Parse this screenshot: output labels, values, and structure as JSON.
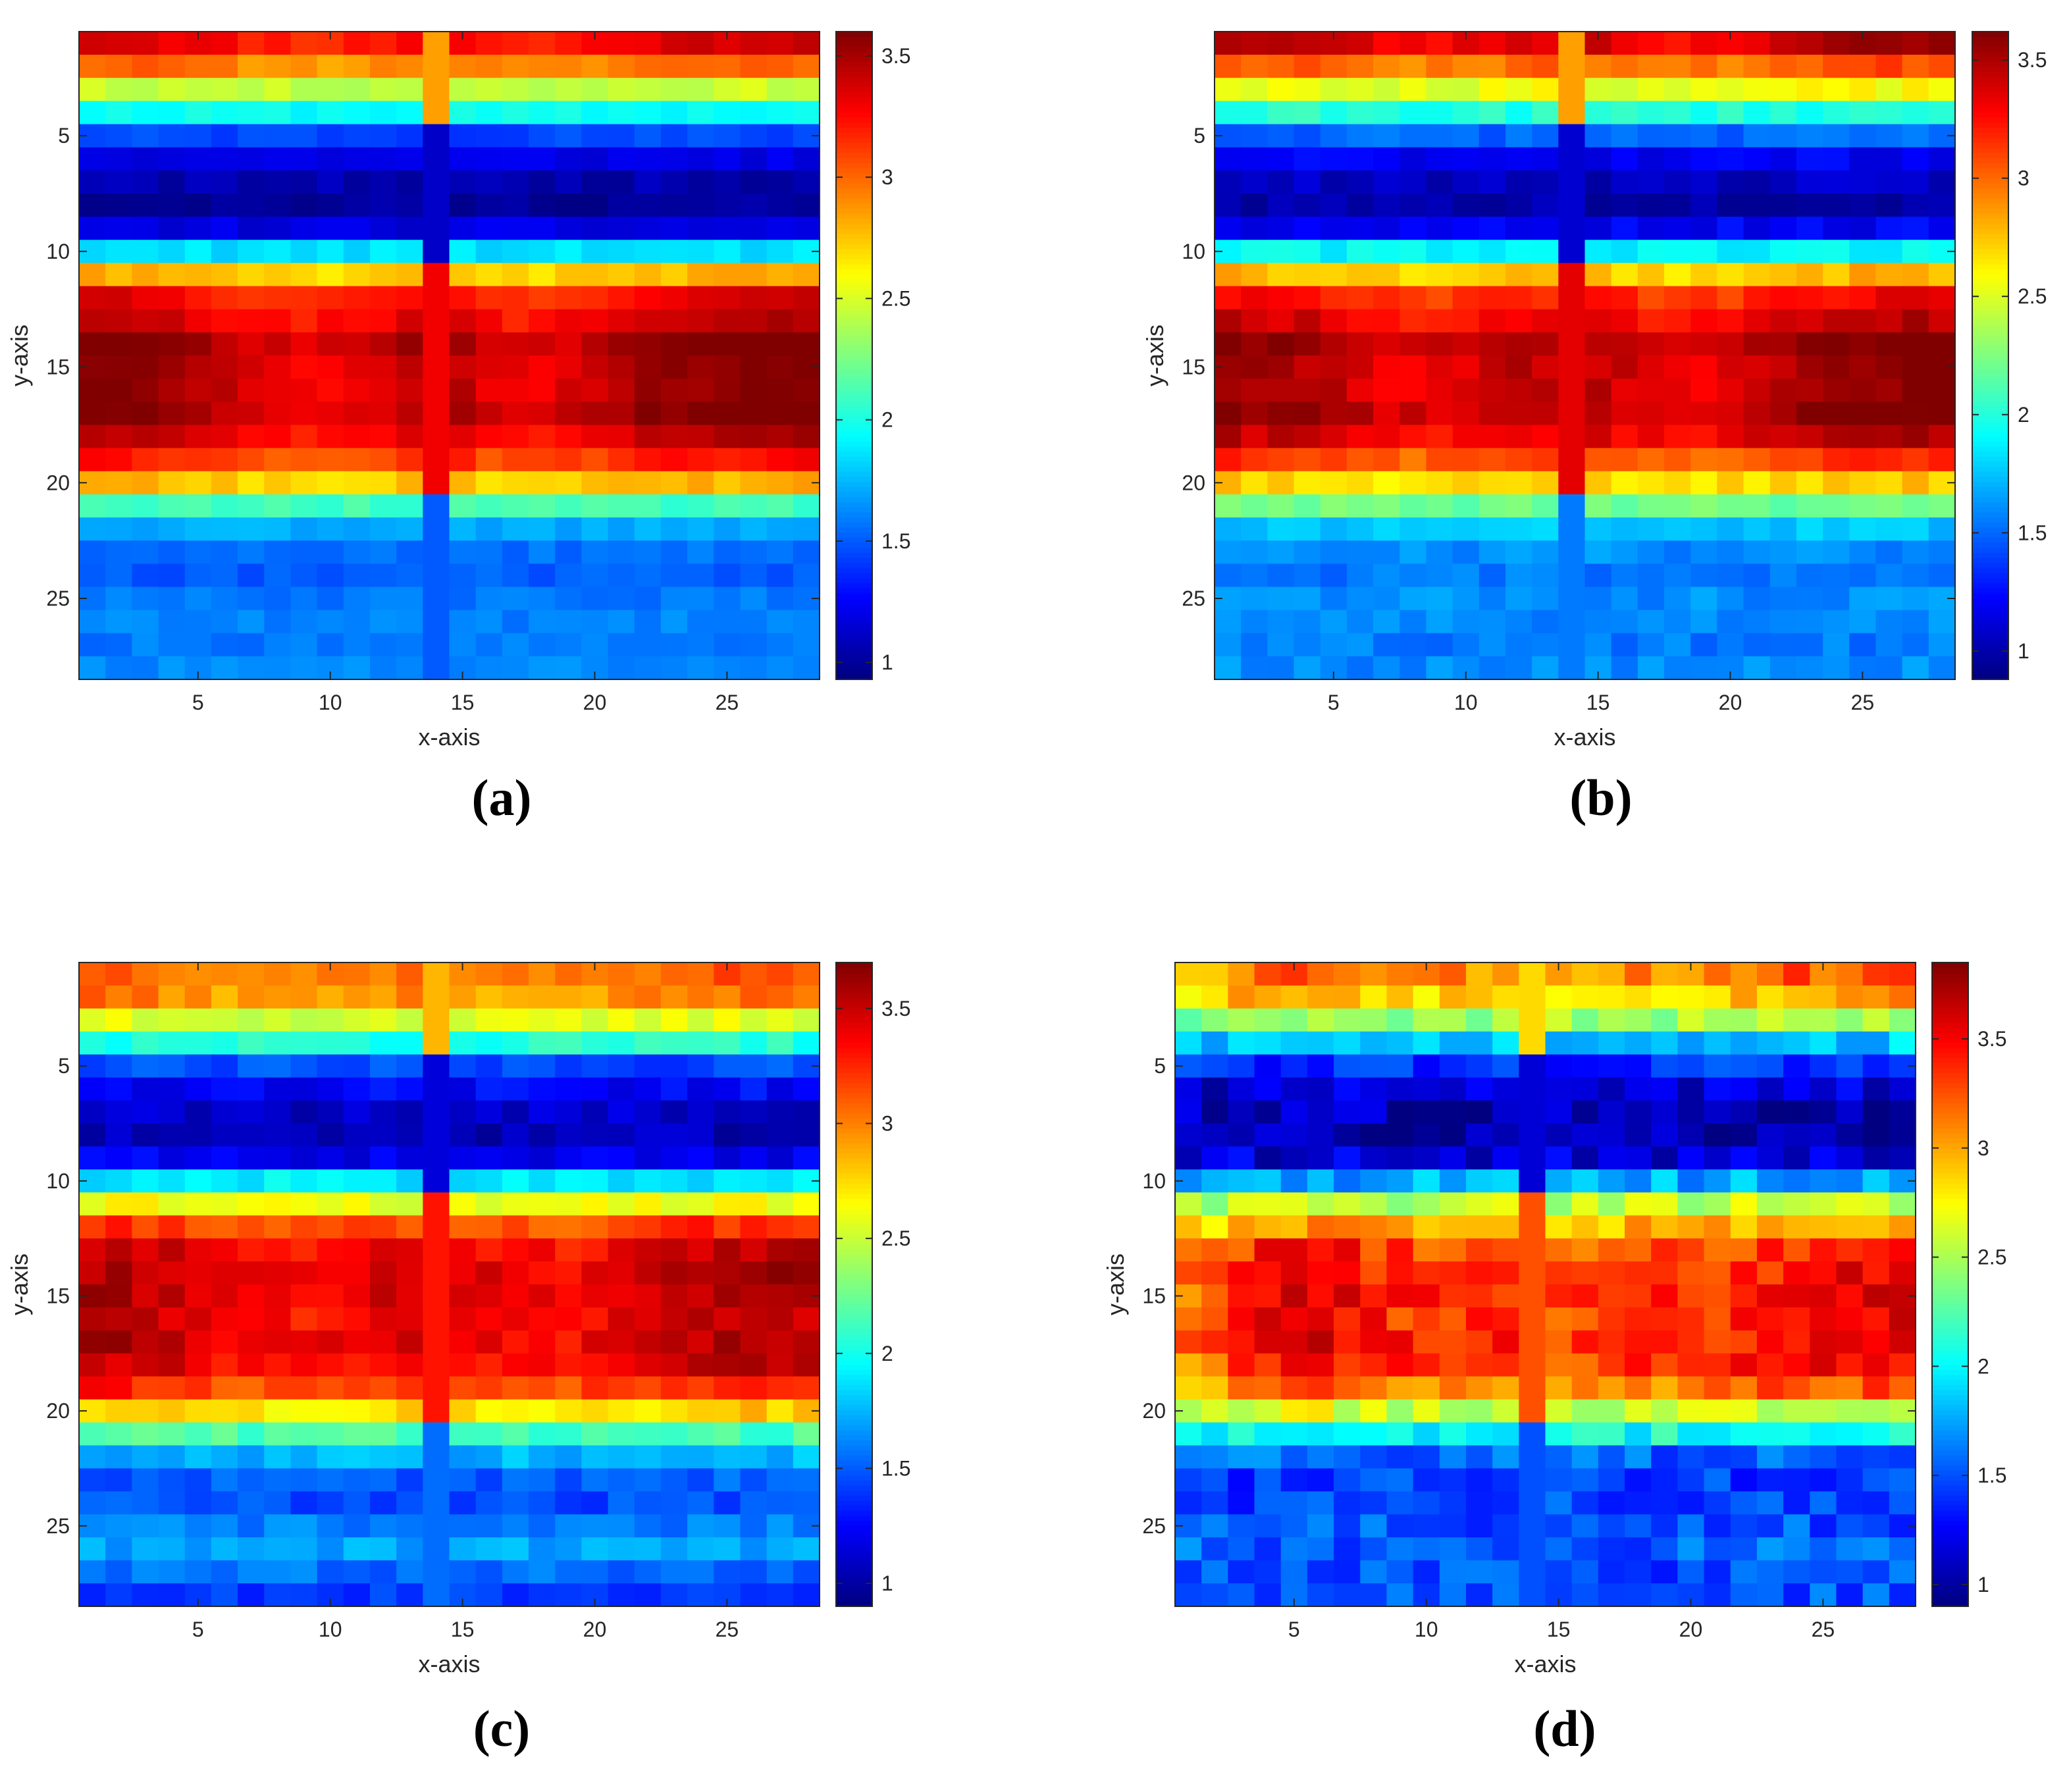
{
  "figure": {
    "panel_count": 4
  },
  "chart_data": [
    {
      "panel": "a",
      "caption": "(a)",
      "type": "heatmap",
      "title": "",
      "xlabel": "x-axis",
      "ylabel": "y-axis",
      "xlim": [
        0.5,
        28.5
      ],
      "ylim": [
        0.5,
        28.5
      ],
      "y_direction": "reversed",
      "grid": false,
      "xticks": [
        5,
        10,
        15,
        20,
        25
      ],
      "yticks": [
        5,
        10,
        15,
        20,
        25
      ],
      "colormap": "jet",
      "colorbar": {
        "range": [
          0.93,
          3.6
        ],
        "ticks": [
          1,
          1.5,
          2,
          2.5,
          3,
          3.5
        ],
        "position": "right"
      },
      "row_profile": [
        3.3,
        2.95,
        2.45,
        1.95,
        1.45,
        1.2,
        1.05,
        1.0,
        1.18,
        1.85,
        2.75,
        3.25,
        3.35,
        3.5,
        3.45,
        3.45,
        3.5,
        3.35,
        3.15,
        2.75,
        2.1,
        1.7,
        1.55,
        1.5,
        1.58,
        1.6,
        1.58,
        1.62
      ],
      "column_profile": [
        0.15,
        0.12,
        0.1,
        0.05,
        0,
        -0.05,
        -0.1,
        -0.12,
        -0.15,
        -0.15,
        -0.12,
        -0.1,
        0,
        0,
        0,
        -0.1,
        -0.15,
        -0.15,
        -0.1,
        -0.05,
        0,
        0.05,
        0.08,
        0.1,
        0.12,
        0.14,
        0.15,
        0.15
      ],
      "center_column": 14,
      "center_column_values": {
        "1-4": 2.85,
        "5-10": 1.12,
        "11-20": 3.3,
        "21-28": 1.5
      },
      "noise_seed": 11,
      "noise_amplitude": 0.06
    },
    {
      "panel": "b",
      "caption": "(b)",
      "type": "heatmap",
      "title": "",
      "xlabel": "x-axis",
      "ylabel": "y-axis",
      "xlim": [
        0.5,
        28.5
      ],
      "ylim": [
        0.5,
        28.5
      ],
      "y_direction": "reversed",
      "grid": false,
      "xticks": [
        5,
        10,
        15,
        20,
        25
      ],
      "yticks": [
        5,
        10,
        15,
        20,
        25
      ],
      "colormap": "jet",
      "colorbar": {
        "range": [
          0.88,
          3.62
        ],
        "ticks": [
          1,
          1.5,
          2,
          2.5,
          3,
          3.5
        ],
        "position": "right"
      },
      "row_profile": [
        3.4,
        3.0,
        2.55,
        2.0,
        1.5,
        1.2,
        1.05,
        1.0,
        1.2,
        1.9,
        2.75,
        3.2,
        3.35,
        3.5,
        3.45,
        3.45,
        3.5,
        3.35,
        3.1,
        2.7,
        2.2,
        1.75,
        1.6,
        1.55,
        1.6,
        1.6,
        1.55,
        1.6
      ],
      "column_profile": [
        0.15,
        0.1,
        0.08,
        0.05,
        0,
        -0.05,
        -0.1,
        -0.12,
        -0.12,
        -0.1,
        -0.05,
        0,
        0,
        0,
        0,
        -0.05,
        -0.1,
        -0.15,
        -0.12,
        -0.08,
        0,
        0.05,
        0.08,
        0.1,
        0.12,
        0.14,
        0.15,
        0.15
      ],
      "center_column": 14,
      "center_column_values": {
        "1-4": 2.85,
        "5-10": 1.1,
        "11-20": 3.35,
        "21-28": 1.55
      },
      "noise_seed": 23,
      "noise_amplitude": 0.08
    },
    {
      "panel": "c",
      "caption": "(c)",
      "type": "heatmap",
      "title": "",
      "xlabel": "x-axis",
      "ylabel": "y-axis",
      "xlim": [
        0.5,
        28.5
      ],
      "ylim": [
        0.5,
        28.5
      ],
      "y_direction": "reversed",
      "grid": false,
      "xticks": [
        5,
        10,
        15,
        20,
        25
      ],
      "yticks": [
        5,
        10,
        15,
        20,
        25
      ],
      "colormap": "jet",
      "colorbar": {
        "range": [
          0.9,
          3.7
        ],
        "ticks": [
          1,
          1.5,
          2,
          2.5,
          3,
          3.5
        ],
        "position": "right"
      },
      "row_profile": [
        3.05,
        2.95,
        2.55,
        2.05,
        1.45,
        1.25,
        1.1,
        1.05,
        1.2,
        1.9,
        2.6,
        3.15,
        3.4,
        3.45,
        3.45,
        3.4,
        3.45,
        3.4,
        3.2,
        2.75,
        2.15,
        1.75,
        1.5,
        1.45,
        1.6,
        1.7,
        1.55,
        1.4
      ],
      "column_profile": [
        0.15,
        0.12,
        0.08,
        0.05,
        0,
        -0.05,
        -0.08,
        -0.1,
        -0.1,
        -0.08,
        -0.05,
        0,
        0,
        0,
        0,
        -0.05,
        -0.08,
        -0.1,
        -0.1,
        -0.05,
        0,
        0.04,
        0.08,
        0.1,
        0.12,
        0.14,
        0.14,
        0.15
      ],
      "center_column": 14,
      "center_column_values": {
        "1-4": 2.85,
        "5-10": 1.15,
        "11-20": 3.3,
        "21-28": 1.55
      },
      "noise_seed": 37,
      "noise_amplitude": 0.1
    },
    {
      "panel": "d",
      "caption": "(d)",
      "type": "heatmap",
      "title": "",
      "xlabel": "x-axis",
      "ylabel": "y-axis",
      "xlim": [
        0.5,
        28.5
      ],
      "ylim": [
        0.5,
        28.5
      ],
      "y_direction": "reversed",
      "grid": false,
      "xticks": [
        5,
        10,
        15,
        20,
        25
      ],
      "yticks": [
        5,
        10,
        15,
        20,
        25
      ],
      "colormap": "jet",
      "colorbar": {
        "range": [
          0.9,
          3.85
        ],
        "ticks": [
          1,
          1.5,
          2,
          2.5,
          3,
          3.5
        ],
        "position": "right"
      },
      "row_profile": [
        3.1,
        2.9,
        2.45,
        1.85,
        1.4,
        1.15,
        1.05,
        1.0,
        1.15,
        1.75,
        2.55,
        2.95,
        3.25,
        3.3,
        3.35,
        3.3,
        3.35,
        3.3,
        3.1,
        2.6,
        2.05,
        1.55,
        1.45,
        1.45,
        1.5,
        1.55,
        1.5,
        1.5
      ],
      "column_profile": [
        -0.2,
        -0.1,
        0.1,
        0.2,
        0.25,
        0.25,
        0.2,
        0.1,
        0.05,
        0,
        0,
        0,
        0,
        0,
        0,
        -0.05,
        -0.05,
        0,
        0,
        0,
        0.05,
        0.1,
        0.15,
        0.2,
        0.2,
        0.2,
        0.25,
        0.25
      ],
      "center_column": 14,
      "center_column_values": {
        "1-4": 2.85,
        "5-10": 1.15,
        "11-20": 3.25,
        "21-28": 1.5
      },
      "noise_seed": 53,
      "noise_amplitude": 0.18
    }
  ]
}
